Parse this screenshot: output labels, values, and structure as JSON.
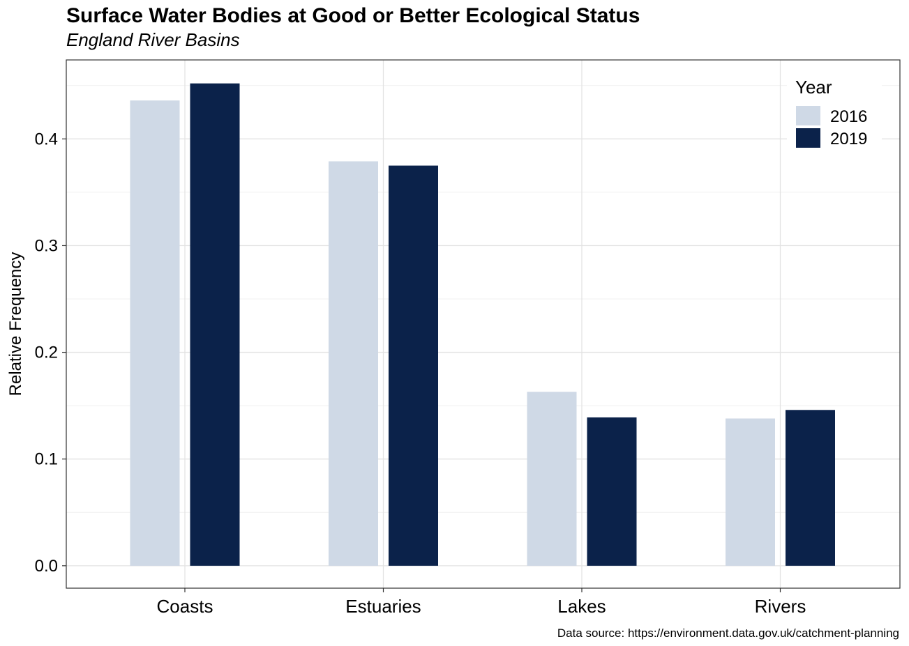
{
  "chart_data": {
    "type": "bar",
    "title": "Surface Water Bodies at Good or Better Ecological Status",
    "subtitle": "England River Basins",
    "xlabel": "",
    "ylabel": "Relative Frequency",
    "categories": [
      "Coasts",
      "Estuaries",
      "Lakes",
      "Rivers"
    ],
    "series": [
      {
        "name": "2016",
        "values": [
          0.436,
          0.379,
          0.163,
          0.138
        ],
        "color": "#cfd9e6"
      },
      {
        "name": "2019",
        "values": [
          0.452,
          0.375,
          0.139,
          0.146
        ],
        "color": "#0b224a"
      }
    ],
    "ylim": [
      -0.021,
      0.474
    ],
    "yticks": [
      0.0,
      0.1,
      0.2,
      0.3,
      0.4
    ],
    "ytick_labels": [
      "0.0",
      "0.1",
      "0.2",
      "0.3",
      "0.4"
    ],
    "legend": {
      "title": "Year",
      "position": "top-right"
    },
    "grid": true,
    "caption": "Data source: https://environment.data.gov.uk/catchment-planning"
  }
}
